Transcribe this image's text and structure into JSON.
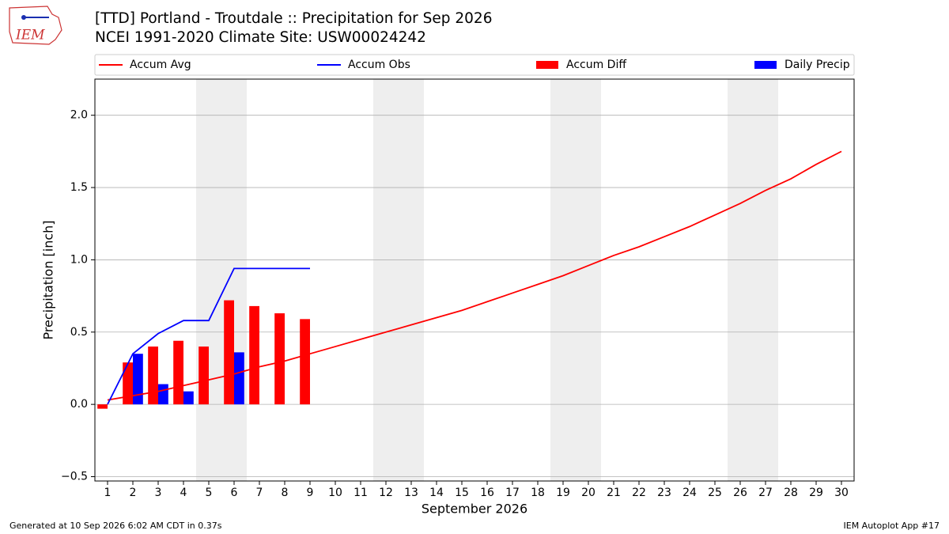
{
  "chart_data": {
    "type": "bar_line",
    "title": "[TTD] Portland - Troutdale :: Precipitation for Sep 2026",
    "subtitle": "NCEI 1991-2020 Climate Site: USW00024242",
    "logo_text": "IEM",
    "xlabel": "September 2026",
    "ylabel": "Precipitation [inch]",
    "footer_left": "Generated at 10 Sep 2026 6:02 AM CDT in 0.37s",
    "footer_right": "IEM Autoplot App #17",
    "x": [
      1,
      2,
      3,
      4,
      5,
      6,
      7,
      8,
      9,
      10,
      11,
      12,
      13,
      14,
      15,
      16,
      17,
      18,
      19,
      20,
      21,
      22,
      23,
      24,
      25,
      26,
      27,
      28,
      29,
      30
    ],
    "xlim": [
      0.5,
      30.5
    ],
    "xticks": [
      1,
      2,
      3,
      4,
      5,
      6,
      7,
      8,
      9,
      10,
      11,
      12,
      13,
      14,
      15,
      16,
      17,
      18,
      19,
      20,
      21,
      22,
      23,
      24,
      25,
      26,
      27,
      28,
      29,
      30
    ],
    "ylim": [
      -0.53,
      2.25
    ],
    "yticks": [
      {
        "value": -0.5,
        "label": "−0.5"
      },
      {
        "value": 0,
        "label": "0.0"
      },
      0.5,
      {
        "value": 1,
        "label": "1.0"
      },
      1.5,
      {
        "value": 2,
        "label": "2.0"
      }
    ],
    "grid": true,
    "shaded_spans": [
      [
        4.5,
        6.5
      ],
      [
        11.5,
        13.5
      ],
      [
        18.5,
        20.5
      ],
      [
        25.5,
        27.5
      ]
    ],
    "shade_color": "#eeeeee",
    "series": [
      {
        "name": "Accum Avg",
        "kind": "line",
        "color": "#ff0000",
        "values": [
          0.03,
          0.06,
          0.09,
          0.13,
          0.17,
          0.21,
          0.26,
          0.3,
          0.35,
          0.4,
          0.45,
          0.5,
          0.55,
          0.6,
          0.65,
          0.71,
          0.77,
          0.83,
          0.89,
          0.96,
          1.03,
          1.09,
          1.16,
          1.23,
          1.31,
          1.39,
          1.48,
          1.56,
          1.66,
          1.75
        ]
      },
      {
        "name": "Accum Obs",
        "kind": "line",
        "color": "#0000ff",
        "values": [
          0.0,
          0.35,
          0.49,
          0.58,
          0.58,
          0.94,
          0.94,
          0.94,
          0.94,
          null,
          null,
          null,
          null,
          null,
          null,
          null,
          null,
          null,
          null,
          null,
          null,
          null,
          null,
          null,
          null,
          null,
          null,
          null,
          null,
          null
        ]
      },
      {
        "name": "Accum Diff",
        "kind": "bar",
        "color": "#ff0000",
        "values": [
          -0.03,
          0.29,
          0.4,
          0.44,
          0.4,
          0.72,
          0.68,
          0.63,
          0.59,
          null,
          null,
          null,
          null,
          null,
          null,
          null,
          null,
          null,
          null,
          null,
          null,
          null,
          null,
          null,
          null,
          null,
          null,
          null,
          null,
          null
        ]
      },
      {
        "name": "Daily Precip",
        "kind": "bar",
        "color": "#0000ff",
        "values": [
          0,
          0.35,
          0.14,
          0.09,
          0,
          0.36,
          0,
          0,
          0,
          null,
          null,
          null,
          null,
          null,
          null,
          null,
          null,
          null,
          null,
          null,
          null,
          null,
          null,
          null,
          null,
          null,
          null,
          null,
          null,
          null
        ]
      }
    ]
  }
}
